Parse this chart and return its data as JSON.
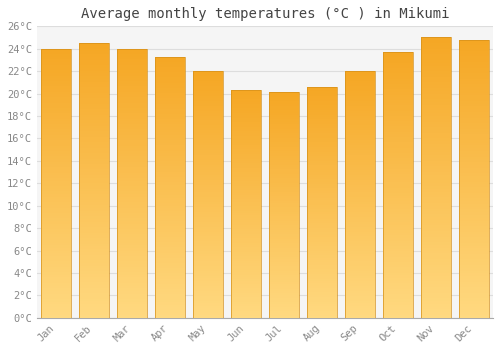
{
  "title": "Average monthly temperatures (°C ) in Mikumi",
  "months": [
    "Jan",
    "Feb",
    "Mar",
    "Apr",
    "May",
    "Jun",
    "Jul",
    "Aug",
    "Sep",
    "Oct",
    "Nov",
    "Dec"
  ],
  "temperatures": [
    24.0,
    24.5,
    24.0,
    23.3,
    22.0,
    20.3,
    20.1,
    20.6,
    22.0,
    23.7,
    25.0,
    24.8
  ],
  "bar_color_top": "#F5A623",
  "bar_color_bottom": "#FFD980",
  "bar_edge_color": "#D4901A",
  "ylim": [
    0,
    26
  ],
  "ytick_step": 2,
  "background_color": "#FFFFFF",
  "plot_bg_color": "#F5F5F5",
  "grid_color": "#DDDDDD",
  "title_fontsize": 10,
  "tick_fontsize": 7.5,
  "font_family": "monospace",
  "tick_color": "#888888",
  "title_color": "#444444"
}
